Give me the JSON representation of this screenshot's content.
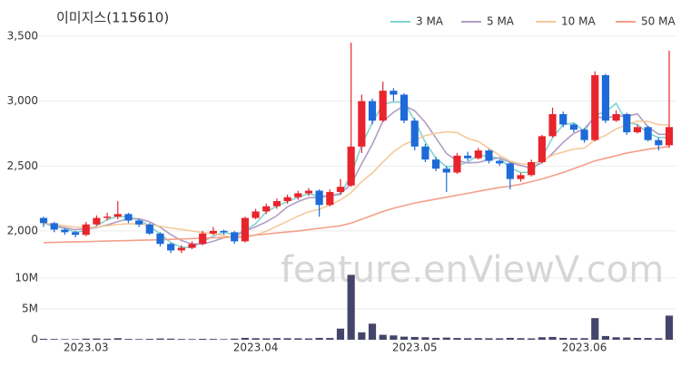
{
  "chart_data": {
    "type": "candlestick",
    "title": "이미지스(115610)",
    "watermark": "feature.enViewV.com",
    "categories": [
      null,
      null,
      null,
      null,
      "2023.03",
      null,
      null,
      null,
      null,
      null,
      null,
      null,
      null,
      null,
      null,
      null,
      null,
      null,
      null,
      null,
      "2023.04",
      null,
      null,
      null,
      null,
      null,
      null,
      null,
      null,
      null,
      null,
      null,
      null,
      null,
      null,
      "2023.05",
      null,
      null,
      null,
      null,
      null,
      null,
      null,
      null,
      null,
      null,
      null,
      null,
      null,
      null,
      null,
      "2023.06",
      null,
      null,
      null,
      null,
      null,
      null,
      null,
      null
    ],
    "ohlc": [
      [
        2100,
        2110,
        2030,
        2060
      ],
      [
        2060,
        2070,
        1990,
        2010
      ],
      [
        2010,
        2020,
        1970,
        1990
      ],
      [
        1990,
        2000,
        1950,
        1970
      ],
      [
        1970,
        2070,
        1960,
        2050
      ],
      [
        2050,
        2120,
        2040,
        2100
      ],
      [
        2100,
        2140,
        2080,
        2110
      ],
      [
        2110,
        2230,
        2090,
        2130
      ],
      [
        2130,
        2140,
        2060,
        2080
      ],
      [
        2080,
        2090,
        2030,
        2050
      ],
      [
        2050,
        2060,
        1970,
        1980
      ],
      [
        1980,
        1990,
        1880,
        1900
      ],
      [
        1900,
        1910,
        1830,
        1850
      ],
      [
        1850,
        1890,
        1830,
        1870
      ],
      [
        1870,
        1920,
        1860,
        1900
      ],
      [
        1900,
        2000,
        1890,
        1980
      ],
      [
        1980,
        2030,
        1970,
        2000
      ],
      [
        2000,
        2010,
        1970,
        1990
      ],
      [
        1990,
        2000,
        1900,
        1920
      ],
      [
        1920,
        2110,
        1910,
        2100
      ],
      [
        2100,
        2170,
        2090,
        2150
      ],
      [
        2150,
        2210,
        2130,
        2190
      ],
      [
        2190,
        2250,
        2170,
        2230
      ],
      [
        2230,
        2280,
        2210,
        2260
      ],
      [
        2260,
        2310,
        2240,
        2290
      ],
      [
        2290,
        2330,
        2270,
        2310
      ],
      [
        2310,
        2320,
        2110,
        2200
      ],
      [
        2200,
        2320,
        2190,
        2300
      ],
      [
        2300,
        2400,
        2280,
        2340
      ],
      [
        2350,
        3450,
        2340,
        2650
      ],
      [
        2650,
        3050,
        2600,
        3000
      ],
      [
        3000,
        3020,
        2820,
        2850
      ],
      [
        2850,
        3150,
        2840,
        3080
      ],
      [
        3080,
        3100,
        3000,
        3050
      ],
      [
        3050,
        3060,
        2830,
        2850
      ],
      [
        2850,
        2870,
        2620,
        2650
      ],
      [
        2650,
        2670,
        2530,
        2550
      ],
      [
        2550,
        2570,
        2460,
        2480
      ],
      [
        2480,
        2500,
        2300,
        2450
      ],
      [
        2450,
        2600,
        2440,
        2580
      ],
      [
        2580,
        2610,
        2540,
        2560
      ],
      [
        2560,
        2640,
        2550,
        2620
      ],
      [
        2620,
        2630,
        2520,
        2540
      ],
      [
        2540,
        2550,
        2500,
        2520
      ],
      [
        2520,
        2530,
        2320,
        2400
      ],
      [
        2400,
        2450,
        2380,
        2430
      ],
      [
        2430,
        2550,
        2420,
        2530
      ],
      [
        2530,
        2740,
        2520,
        2730
      ],
      [
        2730,
        2950,
        2720,
        2900
      ],
      [
        2900,
        2920,
        2800,
        2820
      ],
      [
        2820,
        2830,
        2760,
        2780
      ],
      [
        2780,
        2790,
        2680,
        2700
      ],
      [
        2700,
        3230,
        2690,
        3200
      ],
      [
        3200,
        3210,
        2830,
        2850
      ],
      [
        2850,
        2930,
        2840,
        2900
      ],
      [
        2900,
        2910,
        2740,
        2760
      ],
      [
        2760,
        2820,
        2750,
        2800
      ],
      [
        2800,
        2810,
        2690,
        2700
      ],
      [
        2700,
        2720,
        2620,
        2660
      ],
      [
        2660,
        3390,
        2640,
        2800
      ]
    ],
    "volume": [
      150000,
      120000,
      100000,
      90000,
      180000,
      200000,
      160000,
      250000,
      130000,
      110000,
      140000,
      200000,
      180000,
      120000,
      110000,
      150000,
      130000,
      100000,
      180000,
      300000,
      250000,
      220000,
      260000,
      240000,
      230000,
      210000,
      300000,
      280000,
      1800000,
      10500000,
      1200000,
      2600000,
      800000,
      700000,
      500000,
      450000,
      400000,
      300000,
      350000,
      280000,
      250000,
      260000,
      240000,
      230000,
      300000,
      250000,
      220000,
      400000,
      450000,
      300000,
      260000,
      250000,
      3500000,
      600000,
      400000,
      350000,
      300000,
      280000,
      250000,
      3900000
    ],
    "volume_color": "#45456b",
    "up_color": "#e8242c",
    "down_color": "#1e6ad8",
    "ma_series": [
      {
        "name": "3 MA",
        "color": "#7fd3d0",
        "values": [
          2060,
          2035,
          2020,
          1990,
          2003,
          2040,
          2087,
          2113,
          2107,
          2087,
          2037,
          1977,
          1910,
          1873,
          1873,
          1917,
          1960,
          1990,
          1970,
          2003,
          2057,
          2147,
          2190,
          2227,
          2260,
          2287,
          2267,
          2270,
          2280,
          2430,
          2663,
          2833,
          2977,
          2993,
          2993,
          2850,
          2683,
          2560,
          2493,
          2503,
          2530,
          2587,
          2573,
          2560,
          2487,
          2450,
          2453,
          2563,
          2720,
          2817,
          2833,
          2767,
          2893,
          2917,
          2983,
          2837,
          2820,
          2753,
          2720,
          2720
        ]
      },
      {
        "name": "5 MA",
        "color": "#b19cc4",
        "values": [
          2060,
          2040,
          2025,
          2010,
          2016,
          2026,
          2046,
          2072,
          2094,
          2094,
          2070,
          2028,
          1972,
          1926,
          1900,
          1900,
          1920,
          1948,
          1958,
          1998,
          2032,
          2070,
          2118,
          2186,
          2226,
          2256,
          2258,
          2272,
          2288,
          2360,
          2518,
          2668,
          2844,
          2914,
          2966,
          2926,
          2836,
          2716,
          2596,
          2542,
          2524,
          2528,
          2550,
          2564,
          2528,
          2504,
          2484,
          2526,
          2598,
          2682,
          2752,
          2786,
          2880,
          2870,
          2886,
          2882,
          2902,
          2802,
          2744,
          2744
        ]
      },
      {
        "name": "10 MA",
        "color": "#f5c99a",
        "values": [
          2060,
          2050,
          2040,
          2030,
          2025,
          2030,
          2040,
          2050,
          2055,
          2055,
          2047,
          2036,
          2022,
          2012,
          2000,
          1988,
          1977,
          1963,
          1947,
          1952,
          1969,
          1998,
          2036,
          2075,
          2114,
          2147,
          2167,
          2198,
          2240,
          2295,
          2380,
          2446,
          2531,
          2610,
          2666,
          2700,
          2735,
          2753,
          2764,
          2757,
          2713,
          2690,
          2636,
          2583,
          2538,
          2516,
          2514,
          2539,
          2584,
          2608,
          2630,
          2638,
          2703,
          2736,
          2786,
          2819,
          2846,
          2843,
          2819,
          2817
        ]
      },
      {
        "name": "50 MA",
        "color": "#f4a08a",
        "values": [
          1910,
          1912,
          1914,
          1916,
          1918,
          1920,
          1922,
          1924,
          1926,
          1928,
          1930,
          1932,
          1935,
          1938,
          1941,
          1944,
          1947,
          1950,
          1955,
          1960,
          1968,
          1976,
          1984,
          1992,
          2000,
          2010,
          2020,
          2030,
          2040,
          2060,
          2090,
          2120,
          2150,
          2175,
          2195,
          2215,
          2230,
          2245,
          2260,
          2275,
          2290,
          2305,
          2320,
          2335,
          2345,
          2360,
          2380,
          2400,
          2425,
          2450,
          2480,
          2510,
          2540,
          2560,
          2580,
          2600,
          2615,
          2630,
          2640,
          2650
        ]
      }
    ],
    "ylim": [
      1790,
      3535
    ],
    "yticks": [
      {
        "value": 2000,
        "label": "2,000"
      },
      {
        "value": 2500,
        "label": "2,500"
      },
      {
        "value": 3000,
        "label": "3,000"
      },
      {
        "value": 3500,
        "label": "3,500"
      }
    ],
    "vlim": [
      0,
      11000000
    ],
    "vticks": [
      {
        "value": 0,
        "label": "0"
      },
      {
        "value": 5000000,
        "label": "5M"
      },
      {
        "value": 10000000,
        "label": "10M"
      }
    ],
    "grid": true
  }
}
